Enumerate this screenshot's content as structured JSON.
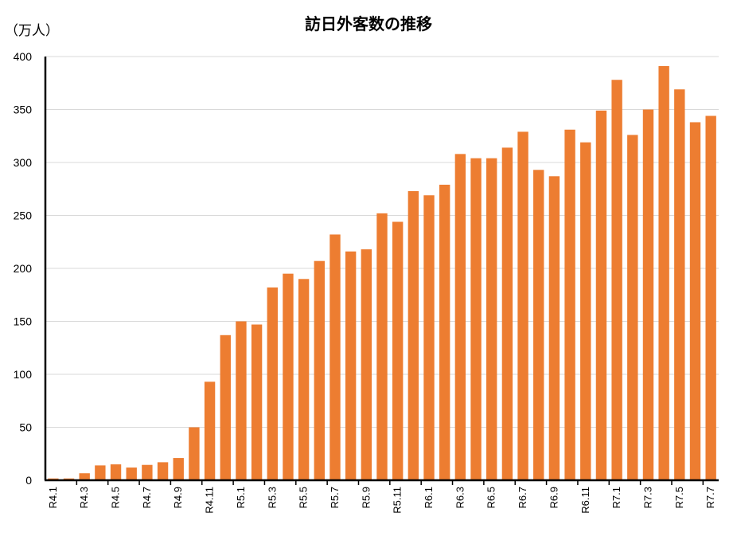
{
  "chart_data": {
    "type": "bar",
    "title": "訪日外客数の推移",
    "ylabel": "（万人）",
    "xlabel": "",
    "ylim": [
      0,
      400
    ],
    "yticks": [
      0,
      50,
      100,
      150,
      200,
      250,
      300,
      350,
      400
    ],
    "grid": true,
    "color": "#ED7D31",
    "categories": [
      "R4.1",
      "R4.2",
      "R4.3",
      "R4.4",
      "R4.5",
      "R4.6",
      "R4.7",
      "R4.8",
      "R4.9",
      "R4.10",
      "R4.11",
      "R4.12",
      "R5.1",
      "R5.2",
      "R5.3",
      "R5.4",
      "R5.5",
      "R5.6",
      "R5.7",
      "R5.8",
      "R5.9",
      "R5.10",
      "R5.11",
      "R5.12",
      "R6.1",
      "R6.2",
      "R6.3",
      "R6.4",
      "R6.5",
      "R6.6",
      "R6.7",
      "R6.8",
      "R6.9",
      "R6.10",
      "R6.11",
      "R6.12",
      "R7.1",
      "R7.2",
      "R7.3",
      "R7.4",
      "R7.5",
      "R7.6",
      "R7.7"
    ],
    "shown_tick_labels": [
      "R4.1",
      "R4.3",
      "R4.5",
      "R4.7",
      "R4.9",
      "R4.11",
      "R5.1",
      "R5.3",
      "R5.5",
      "R5.7",
      "R5.9",
      "R5.11",
      "R6.1",
      "R6.3",
      "R6.5",
      "R6.7",
      "R6.9",
      "R6.11",
      "R7.1",
      "R7.3",
      "R7.5",
      "R7.7"
    ],
    "values": [
      1.7,
      1.7,
      6.6,
      14,
      15,
      12,
      14.5,
      17,
      21,
      50,
      93,
      137,
      150,
      147,
      182,
      195,
      190,
      207,
      232,
      216,
      218,
      252,
      244,
      273,
      269,
      279,
      308,
      304,
      304,
      314,
      329,
      293,
      287,
      331,
      319,
      349,
      378,
      326,
      350,
      391,
      369,
      338,
      344
    ]
  }
}
